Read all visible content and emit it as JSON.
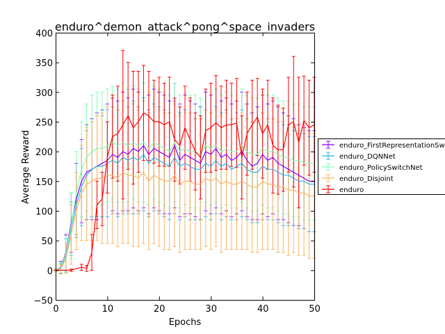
{
  "chart_data": {
    "type": "line",
    "title": "enduro^demon_attack^pong^space_invaders",
    "xlabel": "Epochs",
    "ylabel": "Average Reward",
    "xlim": [
      0,
      50
    ],
    "ylim": [
      -50,
      400
    ],
    "xticks": [
      0,
      10,
      20,
      30,
      40,
      50
    ],
    "yticks": [
      -50,
      0,
      50,
      100,
      150,
      200,
      250,
      300,
      350,
      400
    ],
    "grid": false,
    "legend_position": "right",
    "error_bars": true,
    "series": [
      {
        "name": "enduro_FirstRepresentationSwitchNet",
        "color": "#8000ff",
        "x": [
          0,
          1,
          2,
          3,
          4,
          5,
          6,
          7,
          8,
          9,
          10,
          11,
          12,
          13,
          14,
          15,
          16,
          17,
          18,
          19,
          20,
          21,
          22,
          23,
          24,
          25,
          26,
          27,
          28,
          29,
          30,
          31,
          32,
          33,
          34,
          35,
          36,
          37,
          38,
          39,
          40,
          41,
          42,
          43,
          44,
          45,
          46,
          47,
          48,
          49,
          50
        ],
        "y": [
          0,
          5,
          30,
          80,
          120,
          150,
          165,
          170,
          175,
          180,
          185,
          195,
          190,
          200,
          195,
          205,
          200,
          210,
          195,
          205,
          200,
          195,
          190,
          210,
          185,
          195,
          190,
          185,
          180,
          200,
          195,
          205,
          190,
          195,
          185,
          190,
          200,
          185,
          175,
          180,
          195,
          185,
          190,
          180,
          175,
          170,
          165,
          160,
          155,
          150,
          150
        ],
        "err": [
          2,
          10,
          30,
          50,
          60,
          70,
          80,
          85,
          90,
          90,
          95,
          95,
          95,
          100,
          95,
          100,
          100,
          105,
          100,
          100,
          100,
          100,
          95,
          105,
          95,
          100,
          95,
          95,
          95,
          100,
          100,
          100,
          95,
          95,
          95,
          95,
          100,
          95,
          90,
          95,
          100,
          95,
          95,
          95,
          90,
          90,
          90,
          85,
          85,
          85,
          85
        ]
      },
      {
        "name": "enduro_DQNNet",
        "color": "#2bb5e5",
        "x": [
          0,
          1,
          2,
          3,
          4,
          5,
          6,
          7,
          8,
          9,
          10,
          11,
          12,
          13,
          14,
          15,
          16,
          17,
          18,
          19,
          20,
          21,
          22,
          23,
          24,
          25,
          26,
          27,
          28,
          29,
          30,
          31,
          32,
          33,
          34,
          35,
          36,
          37,
          38,
          39,
          40,
          41,
          42,
          43,
          44,
          45,
          46,
          47,
          48,
          49,
          50
        ],
        "y": [
          0,
          3,
          25,
          70,
          110,
          140,
          160,
          170,
          175,
          175,
          180,
          185,
          180,
          190,
          185,
          190,
          185,
          195,
          180,
          190,
          185,
          180,
          175,
          190,
          175,
          180,
          175,
          170,
          170,
          180,
          175,
          185,
          175,
          180,
          170,
          175,
          180,
          170,
          165,
          165,
          175,
          170,
          170,
          165,
          160,
          160,
          155,
          150,
          150,
          145,
          145
        ],
        "err": [
          2,
          8,
          28,
          45,
          55,
          65,
          75,
          80,
          85,
          85,
          90,
          90,
          90,
          95,
          90,
          95,
          90,
          95,
          90,
          90,
          90,
          90,
          90,
          95,
          90,
          90,
          90,
          85,
          85,
          90,
          90,
          90,
          90,
          90,
          85,
          90,
          90,
          85,
          85,
          85,
          90,
          85,
          85,
          85,
          85,
          85,
          80,
          80,
          80,
          80,
          80
        ]
      },
      {
        "name": "enduro_PolicySwitchNet",
        "color": "#80ffb4",
        "x": [
          0,
          1,
          2,
          3,
          4,
          5,
          6,
          7,
          8,
          9,
          10,
          11,
          12,
          13,
          14,
          15,
          16,
          17,
          18,
          19,
          20,
          21,
          22,
          23,
          24,
          25,
          26,
          27,
          28,
          29,
          30,
          31,
          32,
          33,
          34,
          35,
          36,
          37,
          38,
          39,
          40,
          41,
          42,
          43,
          44,
          45,
          46,
          47,
          48,
          49,
          50
        ],
        "y": [
          0,
          4,
          28,
          75,
          130,
          170,
          190,
          200,
          205,
          205,
          210,
          215,
          210,
          215,
          210,
          215,
          210,
          215,
          205,
          215,
          210,
          205,
          200,
          215,
          200,
          205,
          200,
          200,
          195,
          210,
          205,
          210,
          200,
          205,
          200,
          200,
          210,
          200,
          195,
          195,
          205,
          200,
          200,
          195,
          190,
          190,
          185,
          185,
          180,
          180,
          180
        ],
        "err": [
          2,
          10,
          30,
          55,
          70,
          80,
          90,
          95,
          95,
          95,
          95,
          95,
          95,
          100,
          95,
          95,
          95,
          100,
          95,
          95,
          95,
          95,
          95,
          100,
          95,
          95,
          95,
          95,
          95,
          95,
          95,
          95,
          95,
          95,
          95,
          95,
          95,
          95,
          95,
          95,
          95,
          95,
          95,
          95,
          95,
          95,
          95,
          95,
          95,
          95,
          95
        ]
      },
      {
        "name": "enduro_Disjoint",
        "color": "#ffb360",
        "x": [
          0,
          1,
          2,
          3,
          4,
          5,
          6,
          7,
          8,
          9,
          10,
          11,
          12,
          13,
          14,
          15,
          16,
          17,
          18,
          19,
          20,
          21,
          22,
          23,
          24,
          25,
          26,
          27,
          28,
          29,
          30,
          31,
          32,
          33,
          34,
          35,
          36,
          37,
          38,
          39,
          40,
          41,
          42,
          43,
          44,
          45,
          46,
          47,
          48,
          49,
          50
        ],
        "y": [
          0,
          2,
          20,
          60,
          100,
          130,
          145,
          150,
          155,
          155,
          160,
          160,
          155,
          165,
          160,
          160,
          155,
          165,
          150,
          160,
          155,
          150,
          150,
          160,
          145,
          150,
          150,
          145,
          145,
          155,
          150,
          155,
          145,
          150,
          145,
          145,
          150,
          145,
          140,
          140,
          150,
          145,
          145,
          140,
          140,
          135,
          135,
          130,
          130,
          125,
          125
        ],
        "err": [
          2,
          8,
          25,
          50,
          65,
          80,
          95,
          100,
          105,
          110,
          115,
          115,
          115,
          120,
          115,
          120,
          115,
          120,
          115,
          115,
          115,
          115,
          115,
          120,
          115,
          115,
          115,
          110,
          110,
          115,
          115,
          115,
          115,
          115,
          110,
          110,
          115,
          110,
          110,
          110,
          115,
          110,
          110,
          110,
          110,
          110,
          105,
          105,
          105,
          105,
          105
        ]
      },
      {
        "name": "enduro",
        "color": "#ff0000",
        "x": [
          0,
          3,
          5,
          6,
          7,
          8,
          9,
          10,
          11,
          12,
          13,
          14,
          15,
          16,
          17,
          18,
          19,
          20,
          21,
          22,
          23,
          24,
          25,
          26,
          27,
          28,
          29,
          30,
          31,
          32,
          33,
          34,
          35,
          36,
          37,
          38,
          39,
          40,
          41,
          42,
          43,
          44,
          45,
          46,
          47,
          48,
          49,
          50
        ],
        "y": [
          0,
          0,
          5,
          3,
          30,
          110,
          120,
          190,
          225,
          230,
          245,
          260,
          240,
          250,
          265,
          260,
          250,
          250,
          245,
          250,
          220,
          210,
          240,
          220,
          200,
          190,
          235,
          240,
          248,
          240,
          245,
          245,
          248,
          190,
          230,
          245,
          258,
          230,
          245,
          210,
          203,
          203,
          245,
          250,
          215,
          252,
          240,
          245
        ],
        "err": [
          0,
          2,
          5,
          5,
          30,
          40,
          45,
          60,
          70,
          80,
          125,
          90,
          95,
          85,
          80,
          75,
          70,
          75,
          70,
          75,
          70,
          65,
          70,
          70,
          65,
          70,
          70,
          75,
          80,
          70,
          75,
          70,
          75,
          70,
          70,
          75,
          65,
          75,
          75,
          80,
          75,
          70,
          80,
          110,
          110,
          75,
          80,
          80
        ]
      }
    ]
  }
}
